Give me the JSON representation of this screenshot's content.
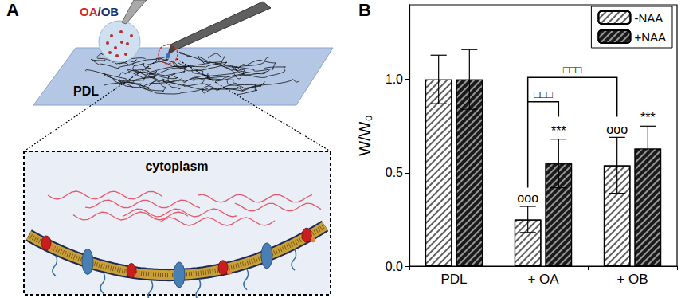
{
  "panel_labels": [
    "A",
    "B"
  ],
  "schematic": {
    "pipette_label": [
      "OA",
      "/",
      "OB"
    ],
    "substrate_label": "PDL",
    "inset_label": "cytoplasm"
  },
  "chart_data": {
    "type": "bar",
    "categories": [
      "PDL",
      "+ OA",
      "+ OB"
    ],
    "y_label": "W/W₀",
    "series": [
      {
        "name": "-NAA",
        "color": "#ffffff",
        "values": [
          1.0,
          0.25,
          0.54
        ],
        "errors": [
          0.13,
          0.07,
          0.15
        ]
      },
      {
        "name": "+NAA",
        "color": "#1a1a1a",
        "values": [
          1.0,
          0.55,
          0.63
        ],
        "errors": [
          0.16,
          0.13,
          0.12
        ]
      }
    ],
    "ylim": [
      0,
      1.4
    ],
    "yticks": [
      {
        "value": 0,
        "label": "0.0"
      },
      {
        "value": 0.5,
        "label": "0.5"
      },
      {
        "value": 1,
        "label": "1.0"
      }
    ],
    "grid": false,
    "legend": "top-right",
    "annotations": [
      {
        "text": "ooo",
        "category": "+ OA",
        "series": "-NAA",
        "y": 0.33
      },
      {
        "text": "***",
        "category": "+ OA",
        "series": "+NAA",
        "y": 0.69
      },
      {
        "text": "ooo",
        "category": "+ OB",
        "series": "-NAA",
        "y": 0.7
      },
      {
        "text": "***",
        "category": "+ OB",
        "series": "+NAA",
        "y": 0.76
      }
    ],
    "brackets": [
      {
        "text": "□□□",
        "from": {
          "category": "+ OA",
          "series": "-NAA",
          "y": 0.42
        },
        "to": {
          "category": "+ OA",
          "series": "+NAA",
          "y": 0.8
        },
        "y": 0.88
      },
      {
        "text": "□□□",
        "from": {
          "category": "+ OA",
          "series": "-NAA",
          "y": 0.88
        },
        "to": {
          "category": "+ OB",
          "series": "-NAA",
          "y": 0.8
        },
        "y": 1.01
      }
    ]
  }
}
